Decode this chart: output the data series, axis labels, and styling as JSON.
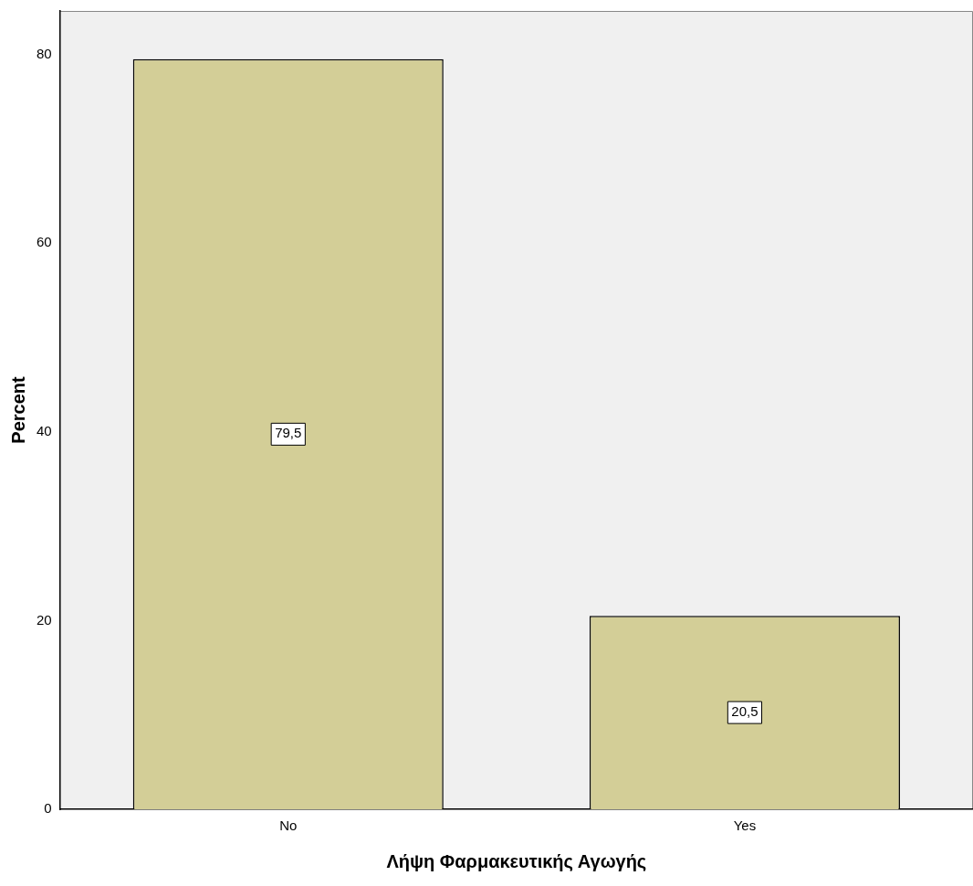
{
  "chart_data": {
    "type": "bar",
    "xlabel": "Λήψη Φαρμακευτικής Αγωγής",
    "ylabel": "Percent",
    "categories": [
      "No",
      "Yes"
    ],
    "values": [
      79.5,
      20.5
    ],
    "color": "#d3ce97",
    "value_labels": [
      "79,5",
      "20,5"
    ],
    "ylim": [
      0,
      84.6
    ],
    "yticks": [
      0,
      20,
      40,
      60,
      80
    ],
    "grid": false,
    "legend": false
  }
}
